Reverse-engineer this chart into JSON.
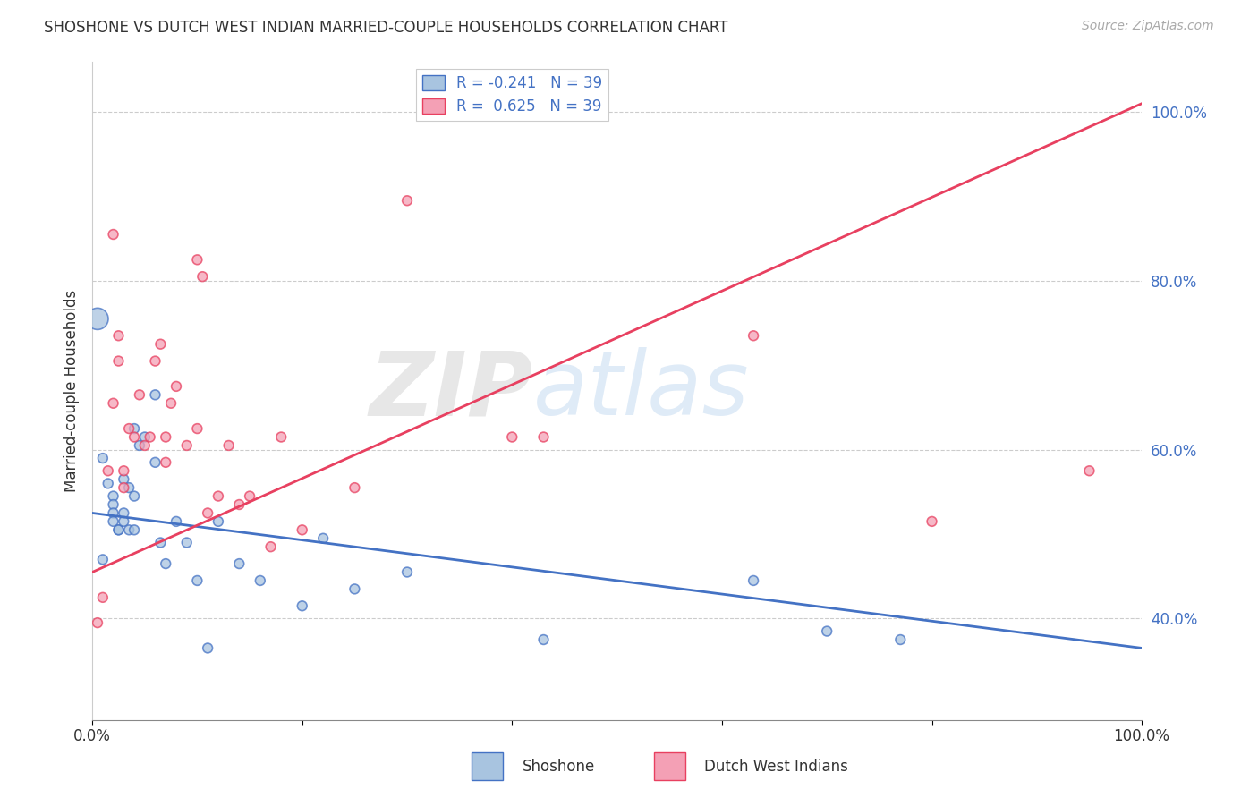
{
  "title": "SHOSHONE VS DUTCH WEST INDIAN MARRIED-COUPLE HOUSEHOLDS CORRELATION CHART",
  "source": "Source: ZipAtlas.com",
  "ylabel": "Married-couple Households",
  "watermark_zip": "ZIP",
  "watermark_atlas": "atlas",
  "shoshone_R": -0.241,
  "shoshone_N": 39,
  "dutch_R": 0.625,
  "dutch_N": 39,
  "shoshone_color": "#a8c4e0",
  "dutch_color": "#f4a0b5",
  "shoshone_line_color": "#4472c4",
  "dutch_line_color": "#e84060",
  "background_color": "#ffffff",
  "grid_color": "#cccccc",
  "shoshone_points_x": [
    0.005,
    0.01,
    0.015,
    0.02,
    0.02,
    0.02,
    0.02,
    0.025,
    0.025,
    0.03,
    0.03,
    0.03,
    0.035,
    0.035,
    0.04,
    0.04,
    0.04,
    0.045,
    0.05,
    0.06,
    0.06,
    0.065,
    0.07,
    0.08,
    0.09,
    0.1,
    0.11,
    0.12,
    0.14,
    0.16,
    0.2,
    0.22,
    0.25,
    0.3,
    0.43,
    0.63,
    0.7,
    0.77,
    0.01
  ],
  "shoshone_points_y": [
    0.755,
    0.59,
    0.56,
    0.545,
    0.535,
    0.525,
    0.515,
    0.505,
    0.505,
    0.565,
    0.525,
    0.515,
    0.505,
    0.555,
    0.545,
    0.505,
    0.625,
    0.605,
    0.615,
    0.665,
    0.585,
    0.49,
    0.465,
    0.515,
    0.49,
    0.445,
    0.365,
    0.515,
    0.465,
    0.445,
    0.415,
    0.495,
    0.435,
    0.455,
    0.375,
    0.445,
    0.385,
    0.375,
    0.47
  ],
  "shoshone_sizes": [
    300,
    60,
    60,
    60,
    60,
    60,
    60,
    60,
    60,
    60,
    60,
    60,
    60,
    60,
    60,
    60,
    60,
    60,
    60,
    60,
    60,
    60,
    60,
    60,
    60,
    60,
    60,
    60,
    60,
    60,
    60,
    60,
    60,
    60,
    60,
    60,
    60,
    60,
    60
  ],
  "dutch_points_x": [
    0.005,
    0.01,
    0.015,
    0.02,
    0.025,
    0.025,
    0.03,
    0.03,
    0.035,
    0.04,
    0.045,
    0.05,
    0.055,
    0.06,
    0.065,
    0.07,
    0.075,
    0.08,
    0.09,
    0.1,
    0.105,
    0.11,
    0.12,
    0.13,
    0.14,
    0.15,
    0.17,
    0.18,
    0.2,
    0.25,
    0.3,
    0.4,
    0.43,
    0.63,
    0.8,
    0.95,
    0.02,
    0.07,
    0.1
  ],
  "dutch_points_y": [
    0.395,
    0.425,
    0.575,
    0.655,
    0.705,
    0.735,
    0.555,
    0.575,
    0.625,
    0.615,
    0.665,
    0.605,
    0.615,
    0.705,
    0.725,
    0.585,
    0.655,
    0.675,
    0.605,
    0.625,
    0.805,
    0.525,
    0.545,
    0.605,
    0.535,
    0.545,
    0.485,
    0.615,
    0.505,
    0.555,
    0.895,
    0.615,
    0.615,
    0.735,
    0.515,
    0.575,
    0.855,
    0.615,
    0.825
  ],
  "dutch_sizes": [
    60,
    60,
    60,
    60,
    60,
    60,
    60,
    60,
    60,
    60,
    60,
    60,
    60,
    60,
    60,
    60,
    60,
    60,
    60,
    60,
    60,
    60,
    60,
    60,
    60,
    60,
    60,
    60,
    60,
    60,
    60,
    60,
    60,
    60,
    60,
    60,
    60,
    60,
    60
  ],
  "yticks": [
    0.4,
    0.6,
    0.8,
    1.0
  ],
  "ytick_labels": [
    "40.0%",
    "60.0%",
    "80.0%",
    "100.0%"
  ],
  "xlim": [
    0.0,
    1.0
  ],
  "ylim": [
    0.28,
    1.06
  ],
  "xticks": [
    0.0,
    0.2,
    0.4,
    0.6,
    0.8,
    1.0
  ],
  "xtick_labels": [
    "0.0%",
    "",
    "",
    "",
    "",
    "100.0%"
  ],
  "shoshone_line_x": [
    0.0,
    1.0
  ],
  "shoshone_line_y": [
    0.525,
    0.365
  ],
  "dutch_line_x": [
    0.0,
    1.0
  ],
  "dutch_line_y": [
    0.455,
    1.01
  ]
}
